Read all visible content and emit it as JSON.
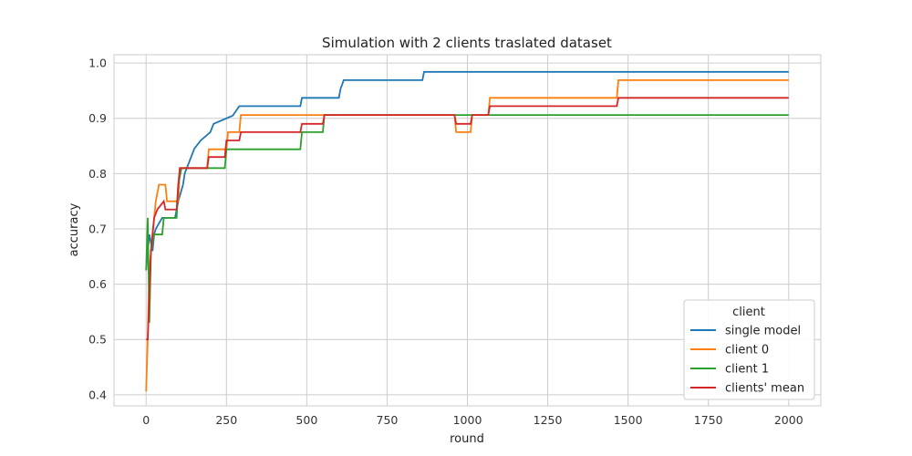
{
  "chart_data": {
    "type": "line",
    "title": "Simulation with 2 clients traslated dataset",
    "xlabel": "round",
    "ylabel": "accuracy",
    "xlim": [
      -100,
      2100
    ],
    "ylim": [
      0.38,
      1.015
    ],
    "x_ticks": [
      0,
      250,
      500,
      750,
      1000,
      1250,
      1500,
      1750,
      2000
    ],
    "x_tick_labels": [
      "0",
      "250",
      "500",
      "750",
      "1000",
      "1250",
      "1500",
      "1750",
      "2000"
    ],
    "y_ticks": [
      0.4,
      0.5,
      0.6,
      0.7,
      0.8,
      0.9,
      1.0
    ],
    "y_tick_labels": [
      "0.4",
      "0.5",
      "0.6",
      "0.7",
      "0.8",
      "0.9",
      "1.0"
    ],
    "grid": true,
    "legend": {
      "title": "client",
      "placement": "lower-right"
    },
    "series": [
      {
        "name": "single model",
        "color": "#1f77b4",
        "points": [
          [
            0,
            0.625
          ],
          [
            5,
            0.66
          ],
          [
            10,
            0.69
          ],
          [
            20,
            0.66
          ],
          [
            25,
            0.69
          ],
          [
            30,
            0.7
          ],
          [
            50,
            0.72
          ],
          [
            90,
            0.72
          ],
          [
            100,
            0.75
          ],
          [
            115,
            0.78
          ],
          [
            120,
            0.8
          ],
          [
            140,
            0.83
          ],
          [
            150,
            0.845
          ],
          [
            170,
            0.86
          ],
          [
            200,
            0.875
          ],
          [
            210,
            0.89
          ],
          [
            270,
            0.905
          ],
          [
            290,
            0.922
          ],
          [
            480,
            0.922
          ],
          [
            485,
            0.937
          ],
          [
            600,
            0.937
          ],
          [
            605,
            0.953
          ],
          [
            615,
            0.969
          ],
          [
            860,
            0.969
          ],
          [
            865,
            0.984
          ],
          [
            2000,
            0.984
          ]
        ]
      },
      {
        "name": "client 0",
        "color": "#ff7f0e",
        "points": [
          [
            0,
            0.406
          ],
          [
            5,
            0.5
          ],
          [
            10,
            0.625
          ],
          [
            20,
            0.69
          ],
          [
            30,
            0.75
          ],
          [
            40,
            0.78
          ],
          [
            60,
            0.78
          ],
          [
            65,
            0.75
          ],
          [
            100,
            0.75
          ],
          [
            105,
            0.81
          ],
          [
            190,
            0.81
          ],
          [
            195,
            0.844
          ],
          [
            250,
            0.844
          ],
          [
            255,
            0.875
          ],
          [
            290,
            0.875
          ],
          [
            295,
            0.906
          ],
          [
            960,
            0.906
          ],
          [
            965,
            0.875
          ],
          [
            1010,
            0.875
          ],
          [
            1015,
            0.906
          ],
          [
            1065,
            0.906
          ],
          [
            1070,
            0.937
          ],
          [
            1465,
            0.937
          ],
          [
            1470,
            0.969
          ],
          [
            2000,
            0.969
          ]
        ]
      },
      {
        "name": "client 1",
        "color": "#2ca02c",
        "points": [
          [
            0,
            0.625
          ],
          [
            5,
            0.72
          ],
          [
            10,
            0.53
          ],
          [
            15,
            0.66
          ],
          [
            25,
            0.69
          ],
          [
            50,
            0.69
          ],
          [
            55,
            0.72
          ],
          [
            95,
            0.72
          ],
          [
            100,
            0.78
          ],
          [
            110,
            0.81
          ],
          [
            245,
            0.81
          ],
          [
            250,
            0.844
          ],
          [
            480,
            0.844
          ],
          [
            485,
            0.875
          ],
          [
            550,
            0.875
          ],
          [
            555,
            0.906
          ],
          [
            2000,
            0.906
          ]
        ]
      },
      {
        "name": "clients' mean",
        "color": "#d62728",
        "points": [
          [
            0,
            0.5
          ],
          [
            5,
            0.5
          ],
          [
            10,
            0.58
          ],
          [
            15,
            0.66
          ],
          [
            25,
            0.72
          ],
          [
            35,
            0.735
          ],
          [
            55,
            0.75
          ],
          [
            60,
            0.735
          ],
          [
            95,
            0.735
          ],
          [
            100,
            0.78
          ],
          [
            105,
            0.81
          ],
          [
            190,
            0.81
          ],
          [
            195,
            0.83
          ],
          [
            245,
            0.83
          ],
          [
            250,
            0.86
          ],
          [
            290,
            0.86
          ],
          [
            295,
            0.875
          ],
          [
            480,
            0.875
          ],
          [
            485,
            0.89
          ],
          [
            550,
            0.89
          ],
          [
            555,
            0.906
          ],
          [
            960,
            0.906
          ],
          [
            965,
            0.89
          ],
          [
            1010,
            0.89
          ],
          [
            1015,
            0.906
          ],
          [
            1065,
            0.906
          ],
          [
            1070,
            0.922
          ],
          [
            1465,
            0.922
          ],
          [
            1470,
            0.937
          ],
          [
            2000,
            0.937
          ]
        ]
      }
    ]
  }
}
